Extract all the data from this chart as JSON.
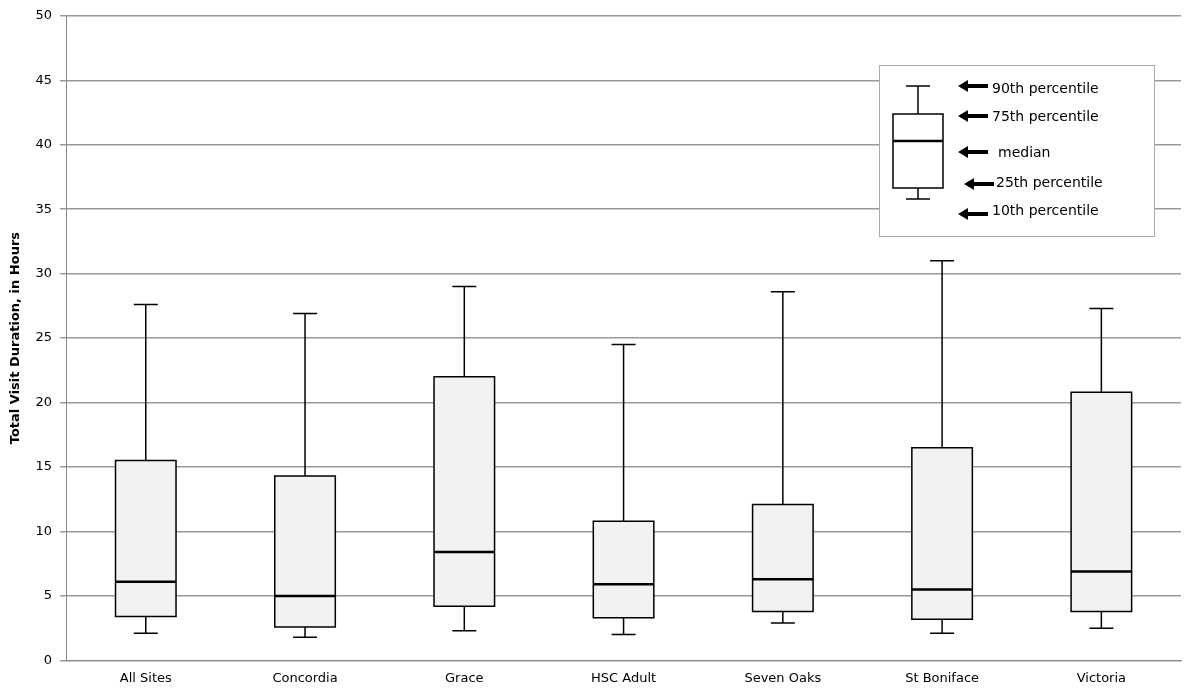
{
  "chart_data": {
    "type": "box",
    "ylabel": "Total Visit Duration, in Hours",
    "categories": [
      "All Sites",
      "Concordia",
      "Grace",
      "HSC Adult",
      "Seven Oaks",
      "St Boniface",
      "Victoria"
    ],
    "boxes": [
      {
        "low": 2.1,
        "q1": 3.4,
        "median": 6.1,
        "q3": 15.5,
        "high": 27.6
      },
      {
        "low": 1.8,
        "q1": 2.6,
        "median": 5.0,
        "q3": 14.3,
        "high": 26.9
      },
      {
        "low": 2.3,
        "q1": 4.2,
        "median": 8.4,
        "q3": 22.0,
        "high": 29.0
      },
      {
        "low": 2.0,
        "q1": 3.3,
        "median": 5.9,
        "q3": 10.8,
        "high": 24.5
      },
      {
        "low": 2.9,
        "q1": 3.8,
        "median": 6.3,
        "q3": 12.1,
        "high": 28.6
      },
      {
        "low": 2.1,
        "q1": 3.2,
        "median": 5.5,
        "q3": 16.5,
        "high": 31.0
      },
      {
        "low": 2.5,
        "q1": 3.8,
        "median": 6.9,
        "q3": 20.8,
        "high": 27.3
      }
    ],
    "color": "#f2f2f2",
    "ylim": [
      0,
      50
    ],
    "yticks": [
      0,
      5,
      10,
      15,
      20,
      25,
      30,
      35,
      40,
      45,
      50
    ],
    "grid": "y",
    "legend": false,
    "annotations": [
      "90th percentile",
      "75th percentile",
      "median",
      "25th percentile",
      "10th percentile"
    ]
  }
}
